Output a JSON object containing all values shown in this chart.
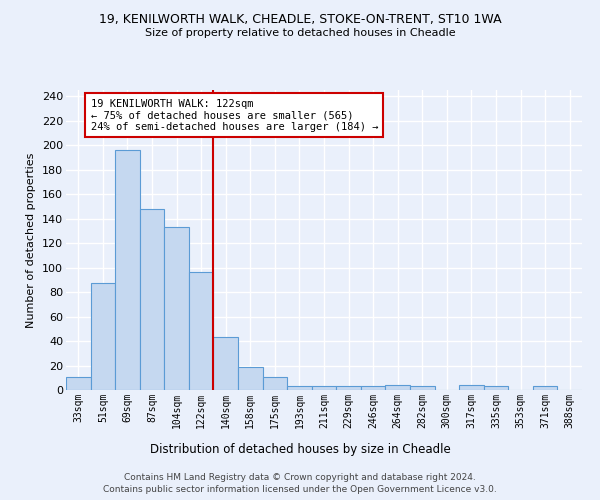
{
  "title1": "19, KENILWORTH WALK, CHEADLE, STOKE-ON-TRENT, ST10 1WA",
  "title2": "Size of property relative to detached houses in Cheadle",
  "xlabel": "Distribution of detached houses by size in Cheadle",
  "ylabel": "Number of detached properties",
  "categories": [
    "33sqm",
    "51sqm",
    "69sqm",
    "87sqm",
    "104sqm",
    "122sqm",
    "140sqm",
    "158sqm",
    "175sqm",
    "193sqm",
    "211sqm",
    "229sqm",
    "246sqm",
    "264sqm",
    "282sqm",
    "300sqm",
    "317sqm",
    "335sqm",
    "353sqm",
    "371sqm",
    "388sqm"
  ],
  "values": [
    11,
    87,
    196,
    148,
    133,
    96,
    43,
    19,
    11,
    3,
    3,
    3,
    3,
    4,
    3,
    0,
    4,
    3,
    0,
    3,
    0
  ],
  "bar_color": "#c5d8f0",
  "bar_edge_color": "#5b9bd5",
  "vline_index": 5,
  "vline_color": "#cc0000",
  "annotation_text": "19 KENILWORTH WALK: 122sqm\n← 75% of detached houses are smaller (565)\n24% of semi-detached houses are larger (184) →",
  "annotation_box_color": "#ffffff",
  "annotation_box_edge": "#cc0000",
  "ylim": [
    0,
    245
  ],
  "yticks": [
    0,
    20,
    40,
    60,
    80,
    100,
    120,
    140,
    160,
    180,
    200,
    220,
    240
  ],
  "footer1": "Contains HM Land Registry data © Crown copyright and database right 2024.",
  "footer2": "Contains public sector information licensed under the Open Government Licence v3.0.",
  "bg_color": "#eaf0fb",
  "grid_color": "#ffffff"
}
